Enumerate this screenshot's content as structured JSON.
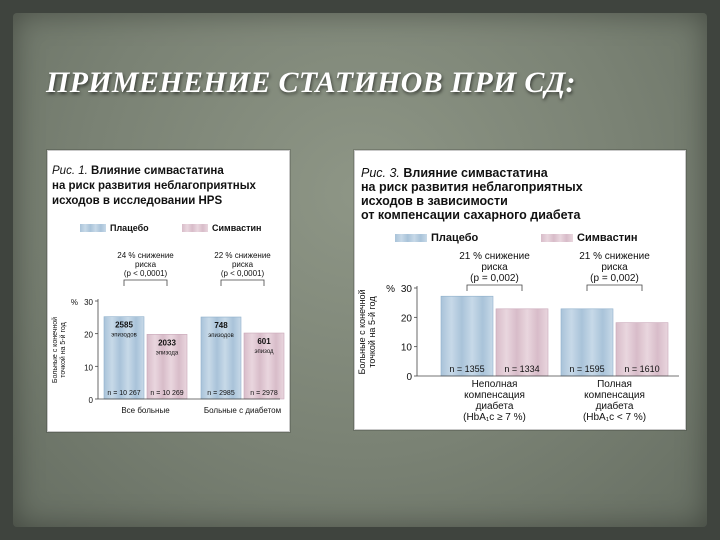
{
  "slide": {
    "title": "ПРИМЕНЕНИЕ СТАТИНОВ ПРИ СД:"
  },
  "colors": {
    "placebo": "#a9c3d9",
    "simvastatin": "#d8bcc9",
    "placebo_stripe": "#c7d9e8",
    "simvastatin_stripe": "#e9d6de"
  },
  "chart_data": [
    {
      "type": "bar",
      "caption_prefix": "Рис. 1.",
      "caption_lines": [
        "Влияние симвастатина",
        "на риск развития неблагоприятных",
        "исходов в исследовании HPS"
      ],
      "legend": [
        "Плацебо",
        "Симвастин"
      ],
      "ylabel_lines": [
        "Больные с конечной",
        "точкой на 5-й год"
      ],
      "y_unit": "%",
      "yticks": [
        "30",
        "20",
        "10",
        "0"
      ],
      "ylim": [
        0,
        30
      ],
      "categories": [
        "Все больные",
        "Больные с диабетом"
      ],
      "series": [
        {
          "name": "Плацебо",
          "values": [
            25.2,
            25.1
          ],
          "bar_labels": [
            [
              "2585",
              "эпизодов"
            ],
            [
              "748",
              "эпизодов"
            ]
          ],
          "n_labels": [
            "n = 10 267",
            "n = 2985"
          ]
        },
        {
          "name": "Симвастин",
          "values": [
            19.8,
            20.2
          ],
          "bar_labels": [
            [
              "2033",
              "эпизода"
            ],
            [
              "601",
              "эпизод"
            ]
          ],
          "n_labels": [
            "n = 10 269",
            "n = 2978"
          ]
        }
      ],
      "annotations": [
        [
          "24 % снижение",
          "риска",
          "(p < 0,0001)"
        ],
        [
          "22 % снижение",
          "риска",
          "(p < 0,0001)"
        ]
      ]
    },
    {
      "type": "bar",
      "caption_prefix": "Рис. 3.",
      "caption_lines": [
        "Влияние симвастатина",
        "на риск развития неблагоприятных",
        "исходов в зависимости",
        "от компенсации сахарного диабета"
      ],
      "legend": [
        "Плацебо",
        "Симвастин"
      ],
      "ylabel_lines": [
        "Больные с конечной",
        "точкой на 5-й год"
      ],
      "y_unit": "%",
      "yticks": [
        "30",
        "20",
        "10",
        "0"
      ],
      "ylim": [
        0,
        30
      ],
      "categories": [
        [
          "Неполная",
          "компенсация",
          "диабета",
          "(HbA₁c ≥ 7 %)"
        ],
        [
          "Полная",
          "компенсация",
          "диабета",
          "(HbA₁c < 7 %)"
        ]
      ],
      "series": [
        {
          "name": "Плацебо",
          "values": [
            27.2,
            22.9
          ],
          "n_labels": [
            "n = 1355",
            "n = 1595"
          ]
        },
        {
          "name": "Симвастин",
          "values": [
            22.9,
            18.2
          ],
          "n_labels": [
            "n = 1334",
            "n = 1610"
          ]
        }
      ],
      "annotations": [
        [
          "21 % снижение",
          "риска",
          "(p = 0,002)"
        ],
        [
          "21 % снижение",
          "риска",
          "(p = 0,002)"
        ]
      ]
    }
  ]
}
